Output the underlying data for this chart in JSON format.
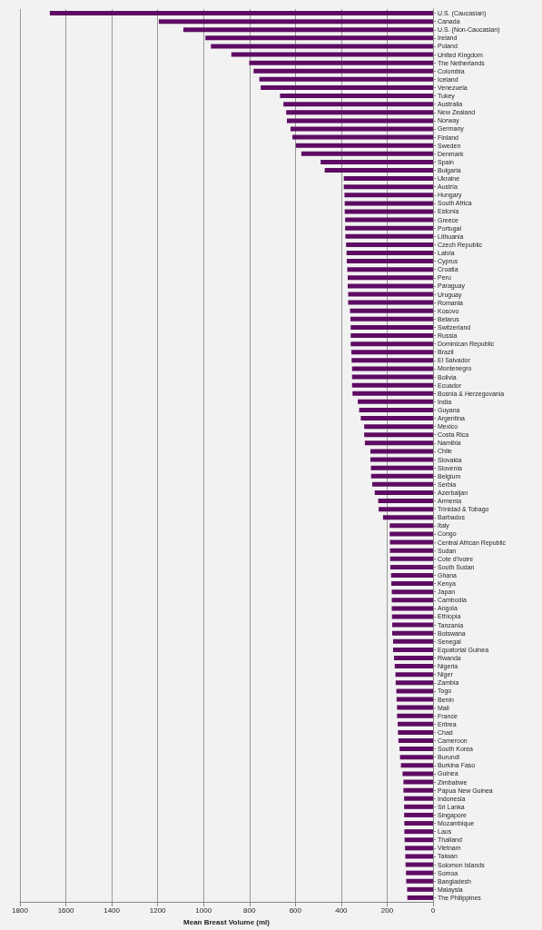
{
  "chart_data": {
    "type": "bar",
    "orientation": "horizontal",
    "xlabel": "Mean Breast Volume (ml)",
    "categories": [
      "U.S. (Caucasian)",
      "Canada",
      "U.S. (Non-Caucasian)",
      "Ireland",
      "Poland",
      "United Kingdom",
      "The Netherlands",
      "Colombia",
      "Iceland",
      "Venezuela",
      "Tukey",
      "Australia",
      "New Zealand",
      "Norway",
      "Germany",
      "Finland",
      "Sweden",
      "Denmark",
      "Spain",
      "Bulgaria",
      "Ukraine",
      "Austria",
      "Hungary",
      "South Africa",
      "Estonia",
      "Greece",
      "Portugal",
      "Lithuania",
      "Czech Republic",
      "Latvia",
      "Cyprus",
      "Croatia",
      "Peru",
      "Paraguay",
      "Uruguay",
      "Romania",
      "Kosovo",
      "Belarus",
      "Switzerland",
      "Russia",
      "Dominican Republic",
      "Brazil",
      "El Salvador",
      "Montenegro",
      "Bolivia",
      "Ecuador",
      "Bosnia & Herzegovania",
      "India",
      "Guyana",
      "Argentina",
      "Mexico",
      "Costa Rica",
      "Namibia",
      "Chile",
      "Slovakia",
      "Slovenia",
      "Belgium",
      "Serbia",
      "Azerbaijan",
      "Armenia",
      "Trinidad & Tobago",
      "Barbados",
      "Italy",
      "Congo",
      "Central African Republic",
      "Sudan",
      "Cote d'Ivoire",
      "South Sudan",
      "Ghana",
      "Kenya",
      "Japan",
      "Cambodia",
      "Angola",
      "Ethiopia",
      "Tanzania",
      "Botswana",
      "Senegal",
      "Equatorial Guinea",
      "Rwanda",
      "Nigeria",
      "Niger",
      "Zambia",
      "Togo",
      "Benin",
      "Mali",
      "France",
      "Eritrea",
      "Chad",
      "Cameroon",
      "South Korea",
      "Burundi",
      "Burkina Faso",
      "Guinea",
      "Zimbabwe",
      "Papua New Guinea",
      "Indonesia",
      "Sri Lanka",
      "Singapore",
      "Mozambique",
      "Laos",
      "Thailand",
      "Vietnam",
      "Taiwan",
      "Solomon Islands",
      "Somoa",
      "Bangladesh",
      "Malaysia",
      "The Philippines"
    ],
    "values": [
      1670,
      1195,
      1088,
      992,
      968,
      879,
      801,
      782,
      757,
      751,
      667,
      652,
      640,
      637,
      621,
      613,
      598,
      574,
      490,
      472,
      389,
      389,
      386,
      385,
      385,
      383,
      383,
      382,
      379,
      377,
      376,
      374,
      372,
      372,
      370,
      370,
      362,
      360,
      359,
      359,
      359,
      356,
      355,
      353,
      353,
      353,
      351,
      328,
      322,
      315,
      300,
      300,
      297,
      273,
      273,
      271,
      270,
      265,
      254,
      239,
      237,
      218,
      189,
      189,
      188,
      188,
      187,
      186,
      183,
      182,
      180,
      180,
      180,
      179,
      178,
      178,
      174,
      174,
      170,
      167,
      164,
      163,
      160,
      159,
      157,
      157,
      154,
      153,
      151,
      146,
      144,
      140,
      133,
      129,
      129,
      126,
      126,
      126,
      125,
      125,
      124,
      122,
      121,
      120,
      118,
      117,
      113,
      112
    ],
    "color": "#5e0b63",
    "xlim": [
      1800,
      0
    ],
    "xticks": [
      0,
      200,
      400,
      600,
      800,
      1000,
      1200,
      1400,
      1600,
      1800
    ],
    "grid": "x"
  }
}
